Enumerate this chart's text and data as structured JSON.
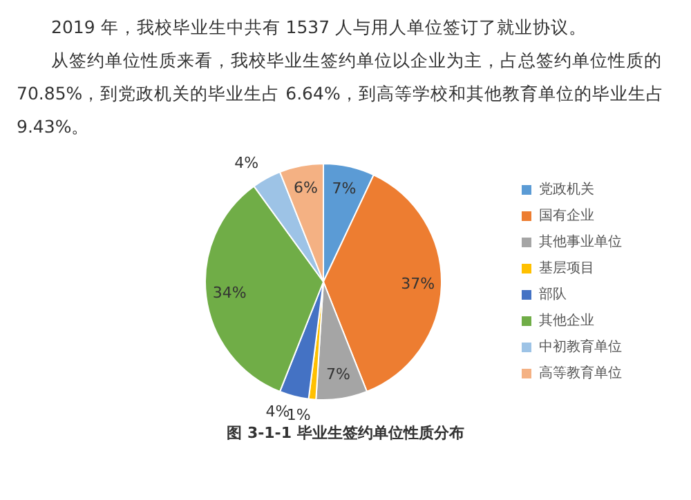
{
  "chart_data": {
    "type": "pie",
    "title": "图 3-1-1  毕业生签约单位性质分布",
    "annotations": [
      "2019 年，我校毕业生中共有 1537 人与用人单位签订了就业协议。",
      "从签约单位性质来看，我校毕业生签约单位以企业为主，占总签约单位性质的 70.85%，到党政机关的毕业生占 6.64%，到高等学校和其他教育单位的毕业生占 9.43%。"
    ],
    "categories": [
      "党政机关",
      "国有企业",
      "其他事业单位",
      "基层项目",
      "部队",
      "其他企业",
      "中初教育单位",
      "高等教育单位"
    ],
    "values": [
      7,
      37,
      7,
      1,
      4,
      34,
      4,
      6
    ],
    "colors": [
      "#5b9bd5",
      "#ed7d31",
      "#a5a5a5",
      "#ffc000",
      "#4472c4",
      "#70ad47",
      "#9dc3e6",
      "#f4b183"
    ],
    "value_labels": [
      "7%",
      "37%",
      "7%",
      "1%",
      "4%",
      "34%",
      "4%",
      "6%"
    ],
    "legend": "right"
  }
}
